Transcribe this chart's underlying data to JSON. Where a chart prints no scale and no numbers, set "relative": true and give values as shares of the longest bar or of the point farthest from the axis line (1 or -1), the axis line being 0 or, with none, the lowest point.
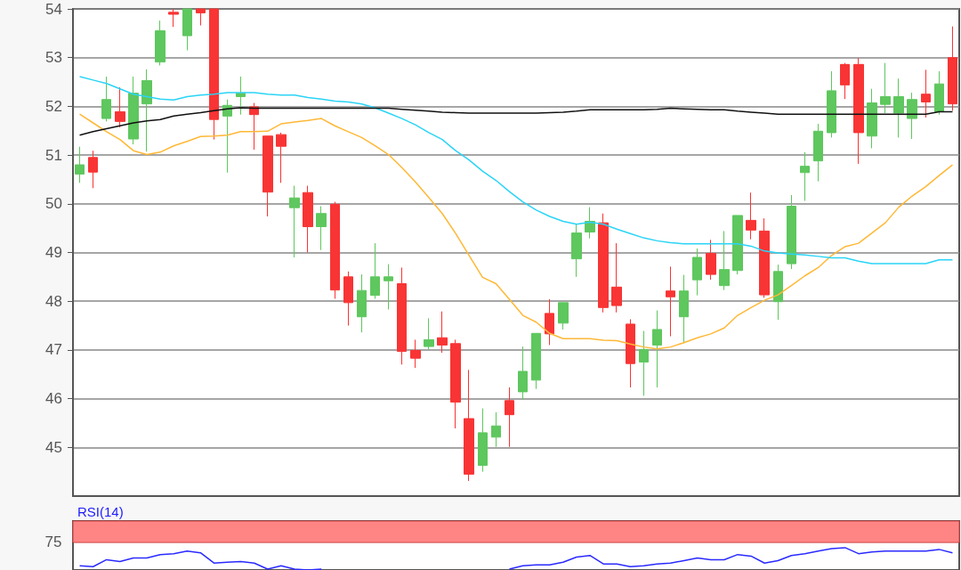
{
  "chart_data": [
    {
      "type": "candlestick",
      "categories": [
        null,
        null,
        null,
        null,
        null,
        null,
        null,
        null,
        null,
        null,
        null,
        null,
        null,
        null,
        null,
        null,
        null,
        null,
        null,
        null,
        null,
        null,
        null,
        null,
        null,
        null,
        null,
        null,
        null,
        null,
        null,
        null,
        null,
        null,
        null,
        null,
        null,
        null,
        null,
        null,
        null,
        null,
        null,
        null,
        null,
        null,
        null,
        null,
        null,
        null,
        null,
        null,
        null,
        null,
        null,
        null,
        null,
        null,
        null,
        null,
        null,
        null,
        null,
        null,
        null,
        null
      ],
      "ohlc": [
        [
          50.61,
          51.17,
          50.43,
          50.8
        ],
        [
          50.95,
          51.09,
          50.32,
          50.65
        ],
        [
          51.75,
          52.61,
          51.69,
          52.14
        ],
        [
          51.89,
          52.39,
          51.57,
          51.69
        ],
        [
          51.33,
          52.61,
          51.22,
          52.27
        ],
        [
          52.05,
          52.76,
          51.07,
          52.53
        ],
        [
          52.91,
          53.76,
          52.84,
          53.55
        ],
        [
          53.93,
          54.0,
          53.63,
          53.89
        ],
        [
          53.45,
          54.0,
          53.15,
          54.0
        ],
        [
          54.0,
          54.0,
          53.66,
          53.92
        ],
        [
          54.0,
          54.0,
          51.32,
          51.73
        ],
        [
          51.8,
          52.14,
          50.64,
          52.02
        ],
        [
          52.2,
          52.61,
          51.83,
          52.27
        ],
        [
          51.99,
          52.07,
          51.11,
          51.83
        ],
        [
          51.39,
          51.39,
          49.74,
          50.24
        ],
        [
          51.42,
          51.46,
          50.43,
          51.18
        ],
        [
          49.92,
          50.37,
          48.9,
          50.12
        ],
        [
          50.23,
          50.37,
          49.0,
          49.53
        ],
        [
          49.53,
          49.95,
          49.05,
          49.8
        ],
        [
          49.99,
          50.04,
          48.05,
          48.23
        ],
        [
          48.5,
          48.61,
          47.5,
          47.97
        ],
        [
          47.68,
          48.55,
          47.36,
          48.22
        ],
        [
          48.12,
          49.19,
          48.05,
          48.5
        ],
        [
          48.42,
          48.76,
          47.83,
          48.5
        ],
        [
          48.36,
          48.69,
          46.7,
          46.97
        ],
        [
          46.99,
          47.21,
          46.63,
          46.83
        ],
        [
          47.07,
          47.65,
          47.01,
          47.21
        ],
        [
          47.25,
          47.79,
          46.94,
          47.1
        ],
        [
          47.13,
          47.21,
          45.39,
          45.93
        ],
        [
          45.59,
          46.59,
          44.31,
          44.45
        ],
        [
          44.63,
          45.8,
          44.5,
          45.3
        ],
        [
          45.21,
          45.72,
          45.01,
          45.44
        ],
        [
          45.96,
          46.23,
          45.01,
          45.67
        ],
        [
          46.14,
          47.07,
          45.98,
          46.56
        ],
        [
          46.38,
          47.34,
          46.2,
          47.34
        ],
        [
          47.75,
          48.04,
          47.1,
          47.33
        ],
        [
          47.55,
          47.97,
          47.42,
          47.97
        ],
        [
          48.87,
          49.59,
          48.5,
          49.4
        ],
        [
          49.42,
          49.93,
          49.29,
          49.64
        ],
        [
          49.61,
          49.8,
          47.77,
          47.87
        ],
        [
          48.29,
          49.19,
          47.77,
          47.91
        ],
        [
          47.53,
          47.63,
          46.23,
          46.72
        ],
        [
          46.75,
          47.39,
          46.06,
          47.01
        ],
        [
          47.1,
          47.81,
          46.23,
          47.42
        ],
        [
          48.21,
          48.71,
          47.28,
          48.09
        ],
        [
          47.68,
          48.54,
          47.14,
          48.21
        ],
        [
          48.44,
          49.08,
          48.12,
          48.9
        ],
        [
          48.98,
          49.26,
          48.44,
          48.55
        ],
        [
          48.32,
          49.44,
          48.23,
          48.65
        ],
        [
          48.63,
          49.76,
          48.55,
          49.76
        ],
        [
          49.66,
          50.23,
          49.27,
          49.46
        ],
        [
          49.44,
          49.7,
          48.07,
          48.13
        ],
        [
          47.99,
          48.75,
          47.62,
          48.61
        ],
        [
          48.77,
          50.18,
          48.66,
          49.95
        ],
        [
          50.64,
          51.06,
          50.06,
          50.77
        ],
        [
          50.88,
          51.64,
          50.46,
          51.49
        ],
        [
          51.46,
          52.72,
          51.36,
          52.32
        ],
        [
          52.86,
          52.89,
          52.15,
          52.44
        ],
        [
          52.86,
          52.99,
          50.82,
          51.46
        ],
        [
          51.39,
          52.36,
          51.14,
          52.07
        ],
        [
          52.04,
          52.89,
          51.86,
          52.2
        ],
        [
          51.86,
          52.57,
          51.36,
          52.2
        ],
        [
          51.75,
          52.28,
          51.33,
          52.14
        ],
        [
          52.25,
          52.75,
          51.77,
          52.09
        ],
        [
          51.89,
          52.72,
          51.83,
          52.46
        ],
        [
          53.0,
          53.64,
          51.91,
          52.05
        ]
      ],
      "colors": [
        "#5ec75e",
        "#f93434",
        "#5ec75e",
        "#f93434",
        "#5ec75e",
        "#5ec75e",
        "#5ec75e",
        "#f93434",
        "#5ec75e",
        "#f93434",
        "#f93434",
        "#5ec75e",
        "#5ec75e",
        "#f93434",
        "#f93434",
        "#f93434",
        "#5ec75e",
        "#f93434",
        "#5ec75e",
        "#f93434",
        "#f93434",
        "#5ec75e",
        "#5ec75e",
        "#5ec75e",
        "#f93434",
        "#f93434",
        "#5ec75e",
        "#f93434",
        "#f93434",
        "#f93434",
        "#5ec75e",
        "#5ec75e",
        "#f93434",
        "#5ec75e",
        "#5ec75e",
        "#f93434",
        "#5ec75e",
        "#5ec75e",
        "#5ec75e",
        "#f93434",
        "#f93434",
        "#f93434",
        "#5ec75e",
        "#5ec75e",
        "#f93434",
        "#5ec75e",
        "#5ec75e",
        "#f93434",
        "#5ec75e",
        "#5ec75e",
        "#f93434",
        "#f93434",
        "#5ec75e",
        "#5ec75e",
        "#5ec75e",
        "#5ec75e",
        "#5ec75e",
        "#f93434",
        "#f93434",
        "#5ec75e",
        "#5ec75e",
        "#5ec75e",
        "#5ec75e",
        "#f93434",
        "#5ec75e",
        "#f93434"
      ],
      "series": [
        {
          "type": "line",
          "color": "#ffb836",
          "values": [
            51.84,
            51.66,
            51.48,
            51.32,
            51.09,
            51.01,
            51.06,
            51.19,
            51.28,
            51.38,
            51.39,
            51.41,
            51.48,
            51.48,
            51.49,
            51.64,
            51.68,
            51.71,
            51.75,
            51.6,
            51.48,
            51.36,
            51.19,
            51.01,
            50.74,
            50.45,
            50.13,
            49.8,
            49.39,
            48.94,
            48.49,
            48.36,
            48.04,
            47.71,
            47.57,
            47.34,
            47.23,
            47.23,
            47.23,
            47.2,
            47.19,
            47.12,
            47.06,
            47.02,
            47.06,
            47.15,
            47.25,
            47.33,
            47.45,
            47.71,
            47.87,
            48.02,
            48.13,
            48.32,
            48.52,
            48.69,
            48.94,
            49.12,
            49.19,
            49.4,
            49.61,
            49.93,
            50.16,
            50.35,
            50.58,
            50.8
          ]
        },
        {
          "type": "line",
          "color": "#2ad4f6",
          "values": [
            52.61,
            52.54,
            52.47,
            52.36,
            52.25,
            52.2,
            52.15,
            52.13,
            52.2,
            52.23,
            52.25,
            52.28,
            52.28,
            52.28,
            52.25,
            52.23,
            52.23,
            52.18,
            52.15,
            52.11,
            52.09,
            52.05,
            51.97,
            51.86,
            51.75,
            51.62,
            51.46,
            51.32,
            51.09,
            50.9,
            50.67,
            50.48,
            50.25,
            50.04,
            49.87,
            49.74,
            49.64,
            49.58,
            49.62,
            49.58,
            49.48,
            49.39,
            49.3,
            49.24,
            49.2,
            49.18,
            49.18,
            49.18,
            49.18,
            49.18,
            49.13,
            49.03,
            48.99,
            48.97,
            48.95,
            48.92,
            48.89,
            48.89,
            48.82,
            48.77,
            48.77,
            48.77,
            48.77,
            48.77,
            48.85,
            48.85
          ]
        },
        {
          "type": "line",
          "color": "#111111",
          "values": [
            51.41,
            51.48,
            51.54,
            51.6,
            51.66,
            51.7,
            51.73,
            51.8,
            51.84,
            51.87,
            51.91,
            51.95,
            51.97,
            51.96,
            51.96,
            51.96,
            51.96,
            51.96,
            51.96,
            51.96,
            51.96,
            51.96,
            51.96,
            51.96,
            51.94,
            51.92,
            51.9,
            51.88,
            51.87,
            51.86,
            51.86,
            51.86,
            51.86,
            51.86,
            51.86,
            51.87,
            51.88,
            51.9,
            51.93,
            51.93,
            51.93,
            51.93,
            51.93,
            51.94,
            51.96,
            51.95,
            51.94,
            51.93,
            51.93,
            51.9,
            51.88,
            51.86,
            51.84,
            51.84,
            51.84,
            51.84,
            51.84,
            51.84,
            51.84,
            51.84,
            51.84,
            51.84,
            51.84,
            51.84,
            51.89,
            51.89
          ]
        }
      ],
      "ylim": [
        44,
        54
      ],
      "yticks": [
        45,
        46,
        47,
        48,
        49,
        50,
        51,
        52,
        53,
        54
      ],
      "grid": "y",
      "tick_labels": "y"
    },
    {
      "type": "line",
      "title": "RSI(14)",
      "categories": [
        null,
        null,
        null,
        null,
        null,
        null,
        null,
        null,
        null,
        null,
        null,
        null,
        null,
        null,
        null,
        null,
        null,
        null,
        null,
        null,
        null,
        null,
        null,
        null,
        null,
        null,
        null,
        null,
        null,
        null,
        null,
        null,
        null,
        null,
        null,
        null,
        null,
        null,
        null,
        null,
        null,
        null,
        null,
        null,
        null,
        null,
        null,
        null,
        null,
        null,
        null,
        null,
        null,
        null,
        null,
        null,
        null,
        null,
        null,
        null,
        null,
        null,
        null,
        null,
        null,
        null
      ],
      "series": [
        {
          "color": "#2a2aff",
          "values": [
            0.19,
            0.15,
            0.46,
            0.38,
            0.54,
            0.54,
            0.69,
            0.73,
            0.85,
            0.77,
            0.31,
            0.35,
            0.38,
            0.31,
            0.04,
            0.19,
            0.04,
            0,
            0.04,
            null,
            null,
            null,
            null,
            null,
            null,
            null,
            null,
            null,
            null,
            null,
            null,
            null,
            0.04,
            0.19,
            0.23,
            0.23,
            0.35,
            0.58,
            0.65,
            0.27,
            0.27,
            0.15,
            0.19,
            0.27,
            0.31,
            0.42,
            0.54,
            0.46,
            0.46,
            0.69,
            0.62,
            0.31,
            0.42,
            0.65,
            0.73,
            0.85,
            0.96,
            1,
            0.73,
            0.81,
            0.85,
            0.85,
            0.85,
            0.85,
            0.92,
            0.77
          ]
        }
      ],
      "bands": [
        {
          "axis": "y",
          "from": 1.23,
          "to": 2.19,
          "color": "#ff8585",
          "label": "75"
        }
      ],
      "relative": true,
      "tick_labels": false
    }
  ]
}
